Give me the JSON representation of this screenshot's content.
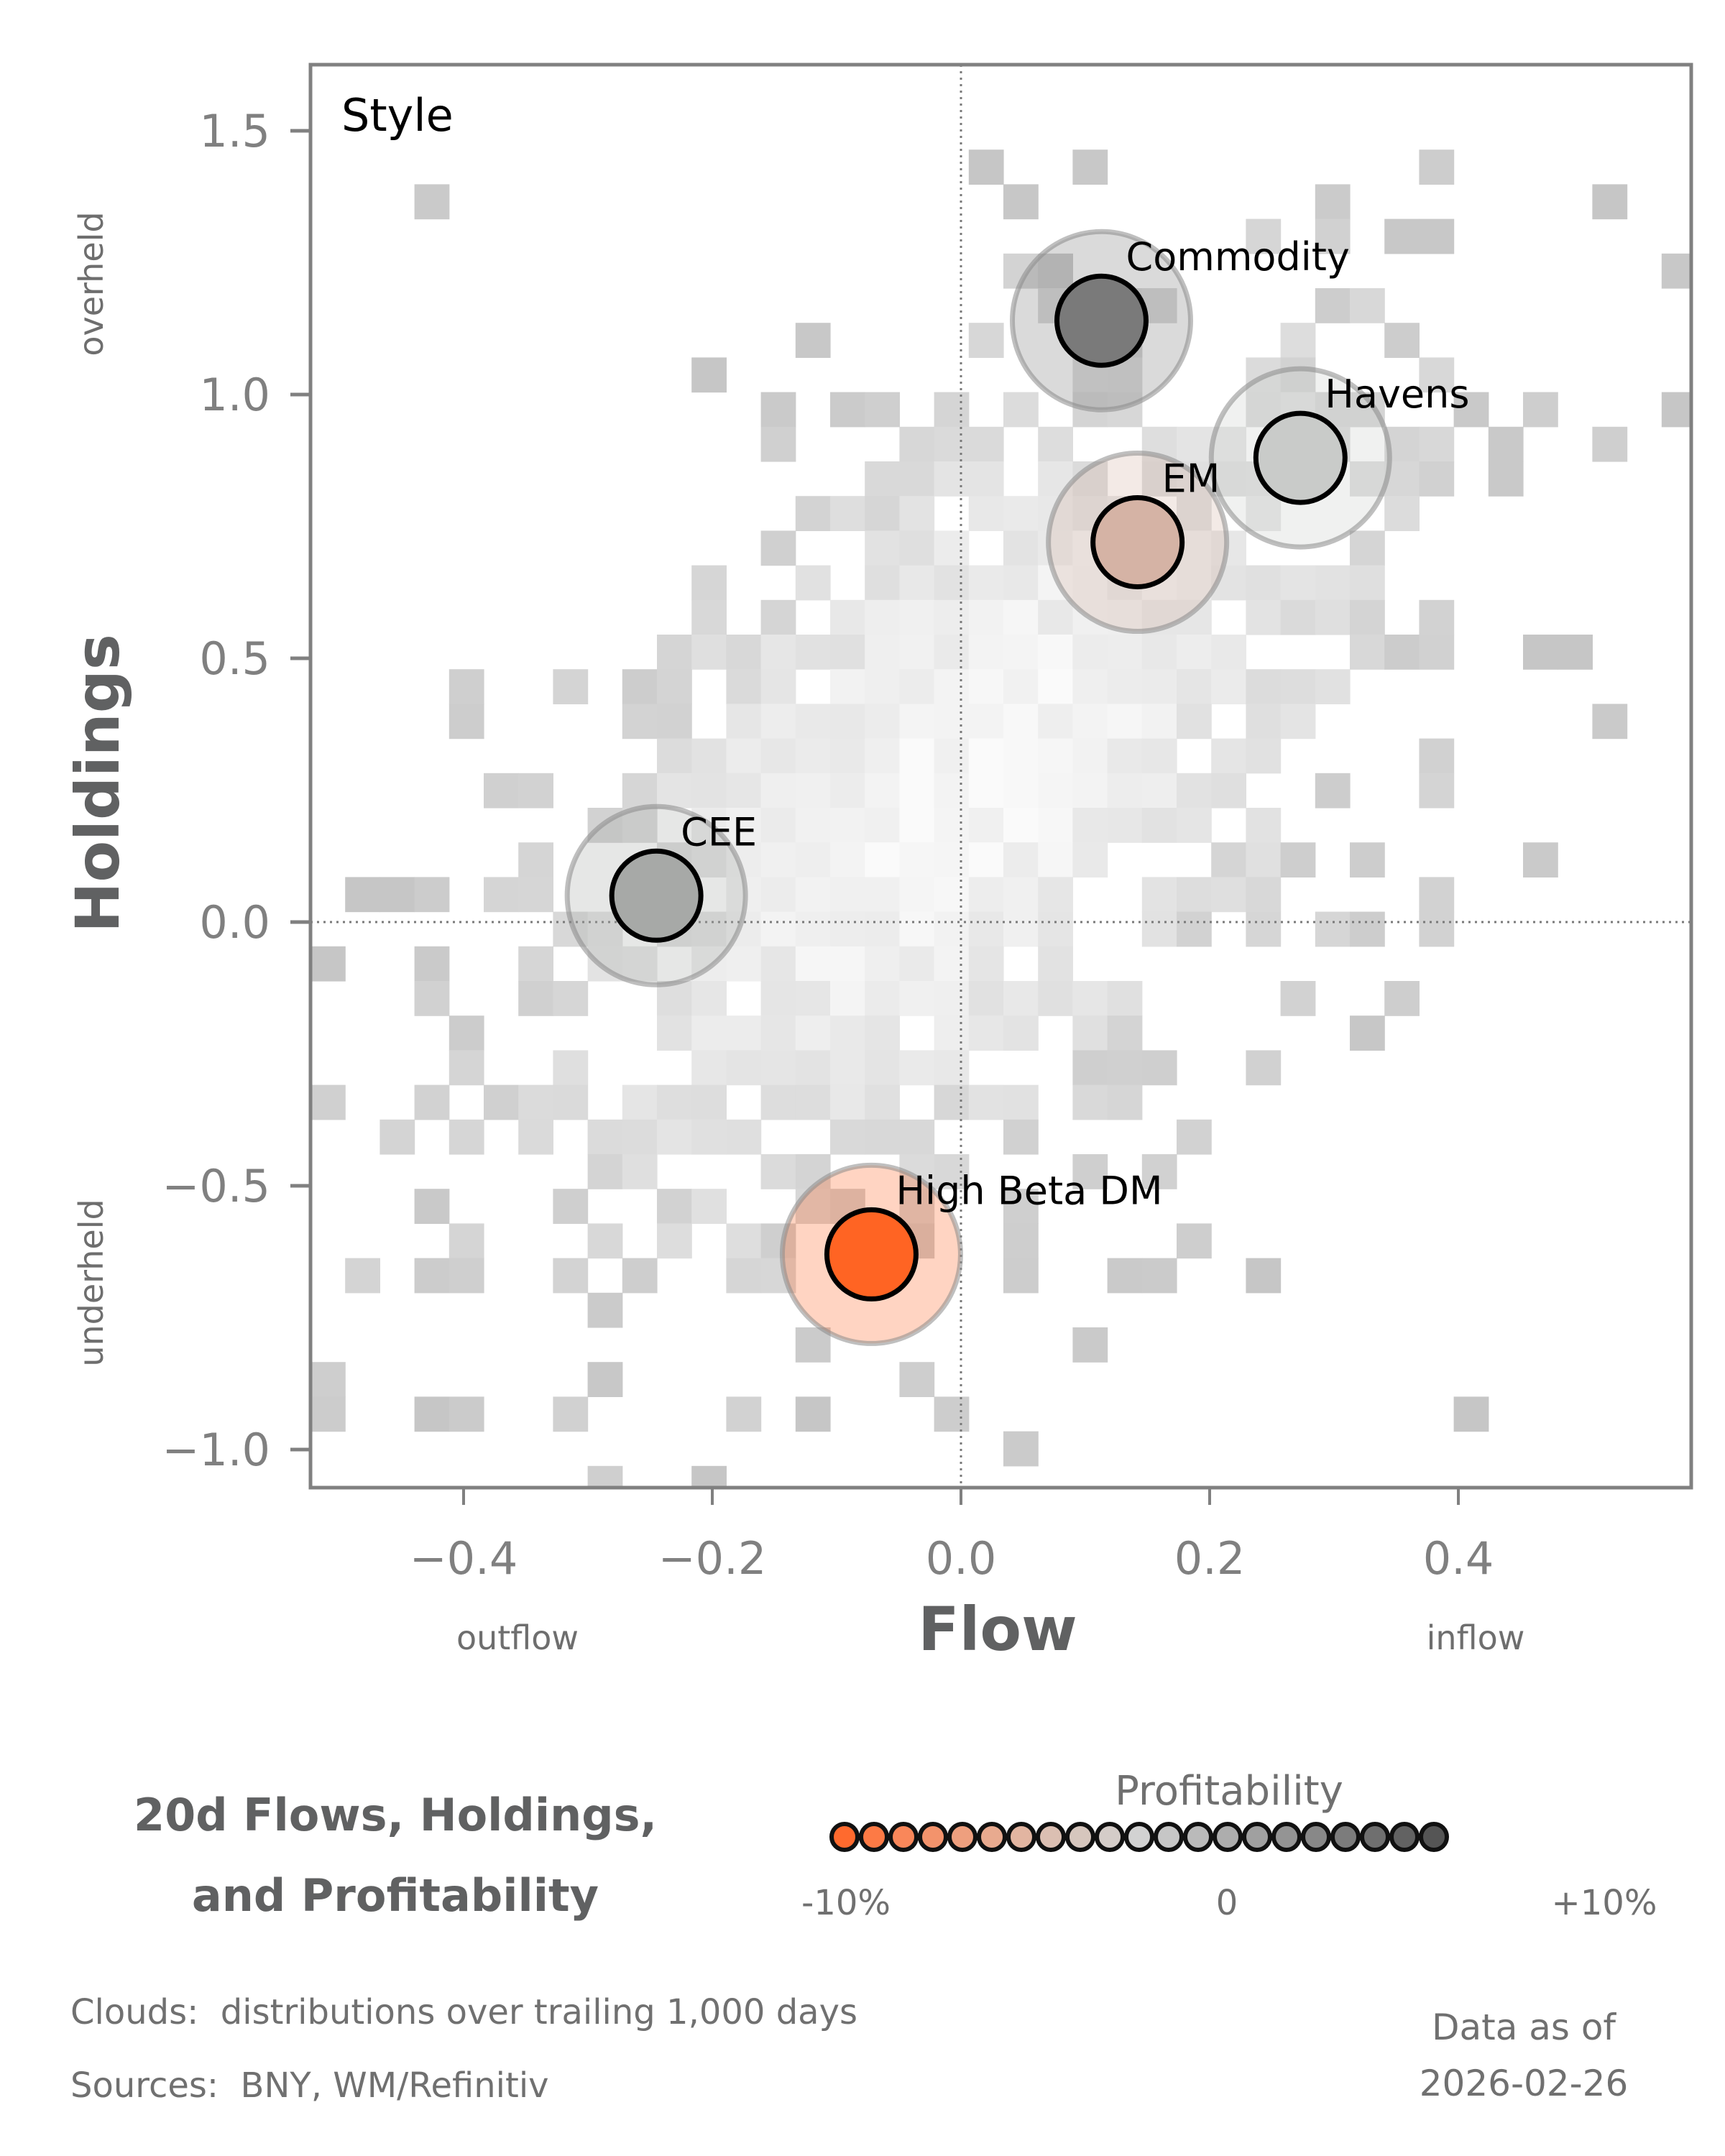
{
  "chart_data": {
    "type": "scatter",
    "title": "20d Flows, Holdings, and Profitability",
    "panel_label": "Style",
    "xlabel": "Flow",
    "ylabel": "Holdings",
    "x_sub_labels": {
      "left": "outflow",
      "right": "inflow"
    },
    "y_sub_labels": {
      "top": "overheld",
      "bottom": "underheld"
    },
    "xlim": [
      -0.52,
      0.59
    ],
    "ylim": [
      -1.07,
      1.625
    ],
    "x_ticks": [
      -0.4,
      -0.2,
      0.0,
      0.2,
      0.4
    ],
    "x_tick_labels": [
      "−0.4",
      "−0.2",
      "0.0",
      "0.2",
      "0.4"
    ],
    "y_ticks": [
      1.5,
      1.0,
      0.5,
      0.0,
      -0.5,
      -1.0
    ],
    "y_tick_labels": [
      "1.5",
      "1.0",
      "0.5",
      "0.0",
      "−0.5",
      "−1.0"
    ],
    "reference_lines": {
      "x": 0.0,
      "y": 0.0,
      "style": "dotted"
    },
    "grid": false,
    "background": "heatmap cloud of historical distributions (trailing 1,000 days)",
    "points": [
      {
        "name": "Commodity",
        "flow": 0.113,
        "holdings": 1.14,
        "profitability_color": "#7a7a7a"
      },
      {
        "name": "Havens",
        "flow": 0.273,
        "holdings": 0.88,
        "profitability_color": "#c9cbc9"
      },
      {
        "name": "EM",
        "flow": 0.142,
        "holdings": 0.72,
        "profitability_color": "#d5b3a5"
      },
      {
        "name": "CEE",
        "flow": -0.245,
        "holdings": 0.05,
        "profitability_color": "#a7a9a7"
      },
      {
        "name": "High Beta DM",
        "flow": -0.072,
        "holdings": -0.63,
        "profitability_color": "#ff6423"
      }
    ],
    "colorbar": {
      "title": "Profitability",
      "min_label": "-10%",
      "mid_label": "0",
      "max_label": "+10%",
      "colors": [
        "#ff6a2e",
        "#fd7a45",
        "#f9875a",
        "#f3936c",
        "#ee9f7e",
        "#e8aa8f",
        "#e2b5a1",
        "#dbbfb2",
        "#d6c6bd",
        "#d4ccc8",
        "#d2d2d2",
        "#c6c6c6",
        "#bababa",
        "#adadad",
        "#a0a0a0",
        "#949494",
        "#888888",
        "#7c7c7c",
        "#6f6f6f",
        "#626262",
        "#555555"
      ]
    }
  },
  "footer": {
    "clouds_note": "Clouds:  distributions over trailing 1,000 days",
    "sources_note": "Sources:  BNY, WM/Refinitiv",
    "asof_label": "Data as of",
    "asof_date": "2026-02-26"
  },
  "title": {
    "line1": "20d Flows, Holdings,",
    "line2": "and Profitability"
  }
}
